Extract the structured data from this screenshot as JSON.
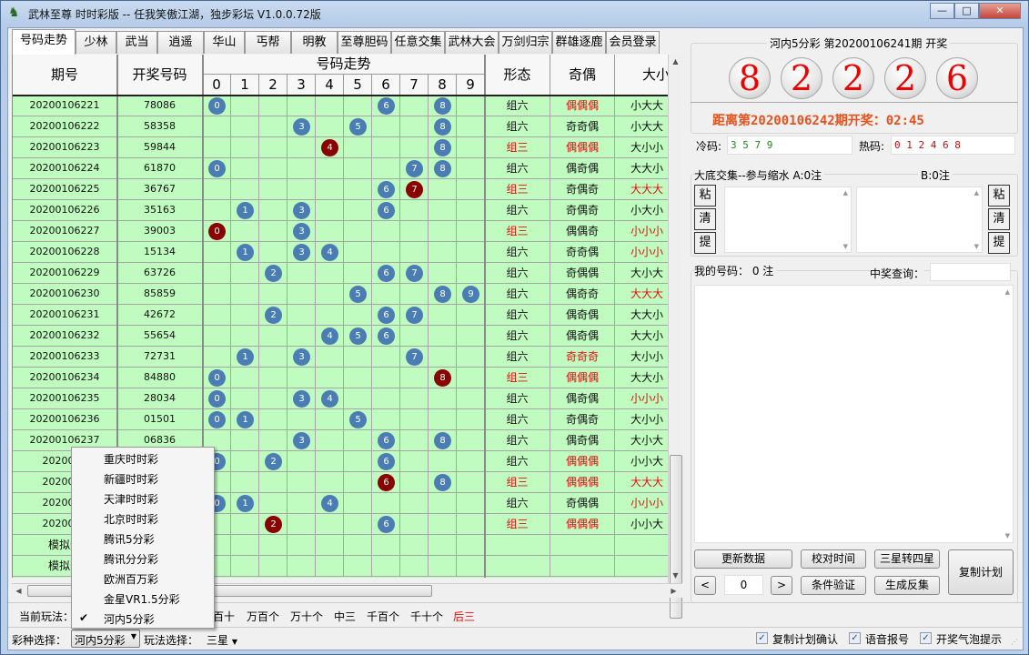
{
  "window": {
    "title": "武林至尊 时时彩版 -- 任我笑傲江湖，独步彩坛  V1.0.0.72版",
    "minimize": "—",
    "maximize": "□",
    "close": "✕"
  },
  "tabs": [
    "号码走势",
    "少林",
    "武当",
    "逍遥",
    "华山",
    "丐帮",
    "明教",
    "至尊胆码",
    "任意交集",
    "武林大会",
    "万剑归宗",
    "群雄逐鹿",
    "会员登录"
  ],
  "table": {
    "headers": {
      "period": "期号",
      "number": "开奖号码",
      "trend": "号码走势",
      "digits": [
        "0",
        "1",
        "2",
        "3",
        "4",
        "5",
        "6",
        "7",
        "8",
        "9"
      ],
      "form": "形态",
      "parity": "奇偶",
      "size": "大小"
    },
    "rows": [
      {
        "period": "20200106221",
        "number": "78086",
        "balls": [
          0,
          6,
          8
        ],
        "dup": [],
        "form": "组六",
        "parity": "偶偶偶",
        "size": "小大大"
      },
      {
        "period": "20200106222",
        "number": "58358",
        "balls": [
          3,
          5,
          8
        ],
        "dup": [],
        "form": "组六",
        "parity": "奇奇偶",
        "size": "小大大"
      },
      {
        "period": "20200106223",
        "number": "59844",
        "balls": [
          4,
          8
        ],
        "dup": [
          4
        ],
        "form": "组三",
        "parity": "偶偶偶",
        "size": "大小小"
      },
      {
        "period": "20200106224",
        "number": "61870",
        "balls": [
          0,
          7,
          8
        ],
        "dup": [],
        "form": "组六",
        "parity": "偶奇偶",
        "size": "大大小"
      },
      {
        "period": "20200106225",
        "number": "36767",
        "balls": [
          6,
          7
        ],
        "dup": [
          7
        ],
        "form": "组三",
        "parity": "奇偶奇",
        "size": "大大大"
      },
      {
        "period": "20200106226",
        "number": "35163",
        "balls": [
          1,
          3,
          6
        ],
        "dup": [],
        "form": "组六",
        "parity": "奇偶奇",
        "size": "小大小"
      },
      {
        "period": "20200106227",
        "number": "39003",
        "balls": [
          0,
          3
        ],
        "dup": [
          0
        ],
        "form": "组三",
        "parity": "偶偶奇",
        "size": "小小小"
      },
      {
        "period": "20200106228",
        "number": "15134",
        "balls": [
          1,
          3,
          4
        ],
        "dup": [],
        "form": "组六",
        "parity": "奇奇偶",
        "size": "小小小"
      },
      {
        "period": "20200106229",
        "number": "63726",
        "balls": [
          2,
          6,
          7
        ],
        "dup": [],
        "form": "组六",
        "parity": "奇偶偶",
        "size": "大小大"
      },
      {
        "period": "20200106230",
        "number": "85859",
        "balls": [
          5,
          8,
          9
        ],
        "dup": [],
        "form": "组六",
        "parity": "偶奇奇",
        "size": "大大大"
      },
      {
        "period": "20200106231",
        "number": "42672",
        "balls": [
          2,
          6,
          7
        ],
        "dup": [],
        "form": "组六",
        "parity": "偶奇偶",
        "size": "大大小"
      },
      {
        "period": "20200106232",
        "number": "55654",
        "balls": [
          4,
          5,
          6
        ],
        "dup": [],
        "form": "组六",
        "parity": "偶奇偶",
        "size": "大大小"
      },
      {
        "period": "20200106233",
        "number": "72731",
        "balls": [
          1,
          3,
          7
        ],
        "dup": [],
        "form": "组六",
        "parity": "奇奇奇",
        "size": "大小小"
      },
      {
        "period": "20200106234",
        "number": "84880",
        "balls": [
          0,
          8
        ],
        "dup": [
          8
        ],
        "form": "组三",
        "parity": "偶偶偶",
        "size": "大大小"
      },
      {
        "period": "20200106235",
        "number": "28034",
        "balls": [
          0,
          3,
          4
        ],
        "dup": [],
        "form": "组六",
        "parity": "偶奇偶",
        "size": "小小小"
      },
      {
        "period": "20200106236",
        "number": "01501",
        "balls": [
          0,
          1,
          5
        ],
        "dup": [],
        "form": "组六",
        "parity": "奇偶奇",
        "size": "大小小"
      },
      {
        "period": "20200106237",
        "number": "06836",
        "balls": [
          3,
          6,
          8
        ],
        "dup": [],
        "form": "组六",
        "parity": "偶奇偶",
        "size": "大小大"
      },
      {
        "period": "2020010",
        "number": "",
        "balls": [
          0,
          2,
          6
        ],
        "dup": [],
        "form": "组六",
        "parity": "偶偶偶",
        "size": "小小大"
      },
      {
        "period": "2020010",
        "number": "",
        "balls": [
          6,
          8
        ],
        "dup": [
          6
        ],
        "form": "组三",
        "parity": "偶偶偶",
        "size": "大大大"
      },
      {
        "period": "2020010",
        "number": "",
        "balls": [
          0,
          1,
          4
        ],
        "dup": [],
        "form": "组六",
        "parity": "奇偶偶",
        "size": "小小小"
      },
      {
        "period": "2020010",
        "number": "",
        "balls": [
          2,
          6
        ],
        "dup": [
          2
        ],
        "form": "组三",
        "parity": "偶偶偶",
        "size": "小小大"
      },
      {
        "period": "模拟选",
        "number": "",
        "balls": [],
        "dup": [],
        "form": "",
        "parity": "",
        "size": ""
      },
      {
        "period": "模拟选",
        "number": "",
        "balls": [],
        "dup": [],
        "form": "",
        "parity": "",
        "size": ""
      }
    ]
  },
  "colors": {
    "grid_bg": "#c0fcc0",
    "ball_blue": "#4a7db3",
    "ball_dup": "#8a0000",
    "highlight": "#e01010",
    "countdown": "#e8501c"
  },
  "right": {
    "draw_title": "河内5分彩 第20200106241期 开奖",
    "draw_numbers": [
      "8",
      "2",
      "2",
      "2",
      "6"
    ],
    "countdown": "距离第20200106242期开奖：02:45",
    "cold_label": "冷码:",
    "cold_value": "3 5 7 9",
    "hot_label": "热码:",
    "hot_value": "0 1 2 4 6 8",
    "intersect_title": "大底交集--参与缩水  A:0注",
    "b_count": "B:0注",
    "side_buttons": [
      "粘",
      "清",
      "提"
    ],
    "my_numbers": "我的号码： 0 注",
    "prize_query": "中奖查询：",
    "buttons": {
      "update": "更新数据",
      "check_time": "校对时间",
      "three_to_four": "三星转四星",
      "copy_plan": "复制计划",
      "prev": "<",
      "page": "0",
      "next": ">",
      "verify": "条件验证",
      "reverse": "生成反集"
    }
  },
  "bottom": {
    "current_play_label": "当前玩法：",
    "play_options": [
      "百十",
      "万百个",
      "万十个",
      "中三",
      "千百个",
      "千十个",
      "后三"
    ],
    "lottery_label": "彩种选择：",
    "lottery_value": "河内5分彩",
    "play_label": "玩法选择：",
    "play_value": "三星",
    "checkboxes": [
      {
        "label": "复制计划确认",
        "checked": true
      },
      {
        "label": "语音报号",
        "checked": true
      },
      {
        "label": "开奖气泡提示",
        "checked": true
      }
    ]
  },
  "dropdown": {
    "items": [
      "重庆时时彩",
      "新疆时时彩",
      "天津时时彩",
      "北京时时彩",
      "腾讯5分彩",
      "腾讯分分彩",
      "欧洲百万彩",
      "金星VR1.5分彩",
      "河内5分彩"
    ],
    "selected": "河内5分彩"
  }
}
